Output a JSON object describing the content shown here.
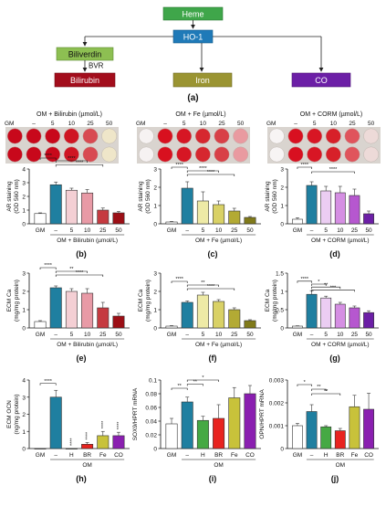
{
  "diagram": {
    "nodes": {
      "heme": "Heme",
      "ho1": "HO-1",
      "biliverdin": "Biliverdin",
      "bvr": "BVR",
      "bilirubin": "Bilirubin",
      "iron": "Iron",
      "co": "CO"
    },
    "colors": {
      "heme": "#3fa64a",
      "ho1": "#1f7ab8",
      "biliverdin": "#8dbf52",
      "bilirubin": "#a30d1c",
      "iron": "#9a9432",
      "co": "#6c1fa6"
    },
    "caption": "(a)"
  },
  "plates": [
    {
      "title": "OM + Bilirubin (µmol/L)",
      "gm": "GM",
      "doses": [
        "–",
        "5",
        "10",
        "25",
        "50"
      ]
    },
    {
      "title": "OM + Fe (µmol/L)",
      "gm": "GM",
      "doses": [
        "–",
        "5",
        "10",
        "25",
        "50"
      ]
    },
    {
      "title": "OM + CORM (µmol/L)",
      "gm": "GM",
      "doses": [
        "–",
        "5",
        "10",
        "25",
        "50"
      ]
    }
  ],
  "sig": "****",
  "chart_data": [
    {
      "id": "b",
      "type": "bar",
      "caption": "(b)",
      "ylabel": [
        "AR staining",
        "(OD 560 nm)"
      ],
      "ylim": [
        0,
        4
      ],
      "yticks": [
        0,
        1,
        2,
        3,
        4
      ],
      "categories": [
        "GM",
        "–",
        "5",
        "10",
        "25",
        "50"
      ],
      "values": [
        0.75,
        2.85,
        2.45,
        2.25,
        1.0,
        0.8
      ],
      "errors": [
        0.05,
        0.2,
        0.15,
        0.25,
        0.15,
        0.1
      ],
      "colors": [
        "#ffffff",
        "#1f7fa0",
        "#f4cfd4",
        "#e89aa6",
        "#c53a40",
        "#9c0f16"
      ],
      "xlabel_left": "GM",
      "xlabel_group": "OM + Bilirubin (µmol/L)"
    },
    {
      "id": "c",
      "type": "bar",
      "caption": "(c)",
      "ylabel": [
        "AR staining",
        "(OD 560 nm)"
      ],
      "ylim": [
        0,
        3
      ],
      "yticks": [
        0,
        1,
        2,
        3
      ],
      "categories": [
        "GM",
        "–",
        "5",
        "10",
        "25",
        "50"
      ],
      "values": [
        0.1,
        1.95,
        1.25,
        1.05,
        0.7,
        0.35
      ],
      "errors": [
        0.03,
        0.35,
        0.5,
        0.2,
        0.15,
        0.05
      ],
      "colors": [
        "#ffffff",
        "#1f7fa0",
        "#eeeaa6",
        "#d9d166",
        "#b3aa34",
        "#807a1a"
      ],
      "xlabel_left": "GM",
      "xlabel_group": "OM + Fe (µmol/L)"
    },
    {
      "id": "d",
      "type": "bar",
      "caption": "(d)",
      "ylabel": [
        "AR staining",
        "(OD 560 nm)"
      ],
      "ylim": [
        0,
        3
      ],
      "yticks": [
        0,
        1,
        2,
        3
      ],
      "categories": [
        "GM",
        "–",
        "5",
        "10",
        "25",
        "50"
      ],
      "values": [
        0.25,
        2.1,
        1.8,
        1.7,
        1.55,
        0.55
      ],
      "errors": [
        0.08,
        0.2,
        0.25,
        0.35,
        0.35,
        0.15
      ],
      "colors": [
        "#ffffff",
        "#1f7fa0",
        "#ebcdf2",
        "#d58fe3",
        "#b657cf",
        "#6c1fa6"
      ],
      "xlabel_left": "GM",
      "xlabel_group": "OM + CORM (µmol/L)"
    },
    {
      "id": "e",
      "type": "bar",
      "caption": "(e)",
      "ylabel": [
        "ECM Ca",
        "(mg/mg protein)"
      ],
      "ylim": [
        0,
        3
      ],
      "yticks": [
        0,
        1,
        2,
        3
      ],
      "categories": [
        "GM",
        "–",
        "5",
        "10",
        "25",
        "50"
      ],
      "values": [
        0.35,
        2.2,
        2.0,
        1.9,
        1.1,
        0.65
      ],
      "errors": [
        0.05,
        0.1,
        0.15,
        0.25,
        0.3,
        0.15
      ],
      "colors": [
        "#ffffff",
        "#1f7fa0",
        "#f4cfd4",
        "#e89aa6",
        "#c53a40",
        "#9c0f16"
      ],
      "xlabel_left": "GM",
      "xlabel_group": "OM + Bilirubin (µmol/L)"
    },
    {
      "id": "f",
      "type": "bar",
      "caption": "(f)",
      "ylabel": [
        "ECM Ca",
        "(mg/mg protein)"
      ],
      "ylim": [
        0,
        3
      ],
      "yticks": [
        0,
        1,
        2,
        3
      ],
      "categories": [
        "GM",
        "–",
        "5",
        "10",
        "25",
        "50"
      ],
      "values": [
        0.1,
        1.4,
        1.8,
        1.45,
        1.0,
        0.4
      ],
      "errors": [
        0.03,
        0.08,
        0.15,
        0.1,
        0.1,
        0.05
      ],
      "colors": [
        "#ffffff",
        "#1f7fa0",
        "#eeeaa6",
        "#d9d166",
        "#b3aa34",
        "#807a1a"
      ],
      "xlabel_left": "GM",
      "xlabel_group": "OM + Fe (µmol/L)"
    },
    {
      "id": "g",
      "type": "bar",
      "caption": "(g)",
      "ylabel": [
        "ECM Ca",
        "(mg/mg protein)"
      ],
      "ylim": [
        0,
        1.5
      ],
      "yticks": [
        0,
        0.5,
        1,
        1.5
      ],
      "categories": [
        "GM",
        "–",
        "5",
        "10",
        "25",
        "50"
      ],
      "values": [
        0.05,
        0.92,
        0.82,
        0.65,
        0.55,
        0.42
      ],
      "errors": [
        0.01,
        0.1,
        0.05,
        0.05,
        0.05,
        0.05
      ],
      "colors": [
        "#ffffff",
        "#1f7fa0",
        "#ebcdf2",
        "#d58fe3",
        "#b657cf",
        "#6c1fa6"
      ],
      "xlabel_left": "GM",
      "xlabel_group": "OM + CORM (µmol/L)"
    },
    {
      "id": "h",
      "type": "bar",
      "caption": "(h)",
      "ylabel": [
        "ECM OCN",
        "(ng/mg protein)"
      ],
      "ylim": [
        0,
        4
      ],
      "yticks": [
        0,
        1,
        2,
        3,
        4
      ],
      "categories": [
        "GM",
        "–",
        "H",
        "BR",
        "Fe",
        "CO"
      ],
      "values": [
        0.0,
        3.0,
        0.0,
        0.25,
        0.75,
        0.75
      ],
      "errors": [
        0.0,
        0.4,
        0.0,
        0.1,
        0.25,
        0.2
      ],
      "colors": [
        "#ffffff",
        "#1f7fa0",
        "#46a944",
        "#e8231f",
        "#c8c23a",
        "#8a1fb0"
      ],
      "xlabel_left": "GM",
      "xlabel_group": "OM"
    },
    {
      "id": "i",
      "type": "bar",
      "caption": "(i)",
      "ylabel": [
        "SOX9/HPRT mRNA"
      ],
      "ylim": [
        0,
        0.1
      ],
      "yticks": [
        0,
        0.02,
        0.04,
        0.06,
        0.08,
        0.1
      ],
      "categories": [
        "GM",
        "–",
        "H",
        "BR",
        "Fe",
        "CO"
      ],
      "values": [
        0.036,
        0.068,
        0.041,
        0.044,
        0.074,
        0.08
      ],
      "errors": [
        0.008,
        0.007,
        0.006,
        0.02,
        0.015,
        0.012
      ],
      "colors": [
        "#ffffff",
        "#1f7fa0",
        "#46a944",
        "#e8231f",
        "#c8c23a",
        "#8a1fb0"
      ],
      "xlabel_left": "GM",
      "xlabel_group": "OM"
    },
    {
      "id": "j",
      "type": "bar",
      "caption": "(j)",
      "ylabel": [
        "OPN/HPRT mRNA"
      ],
      "ylim": [
        0,
        0.003
      ],
      "yticks": [
        0,
        0.001,
        0.002,
        0.003
      ],
      "categories": [
        "GM",
        "–",
        "H",
        "BR",
        "Fe",
        "CO"
      ],
      "values": [
        0.001,
        0.00162,
        0.00095,
        0.00078,
        0.00183,
        0.00172
      ],
      "errors": [
        0.0001,
        0.0003,
        5e-05,
        0.0001,
        0.0005,
        0.0007
      ],
      "colors": [
        "#ffffff",
        "#1f7fa0",
        "#46a944",
        "#e8231f",
        "#c8c23a",
        "#8a1fb0"
      ],
      "xlabel_left": "GM",
      "xlabel_group": "OM"
    }
  ]
}
